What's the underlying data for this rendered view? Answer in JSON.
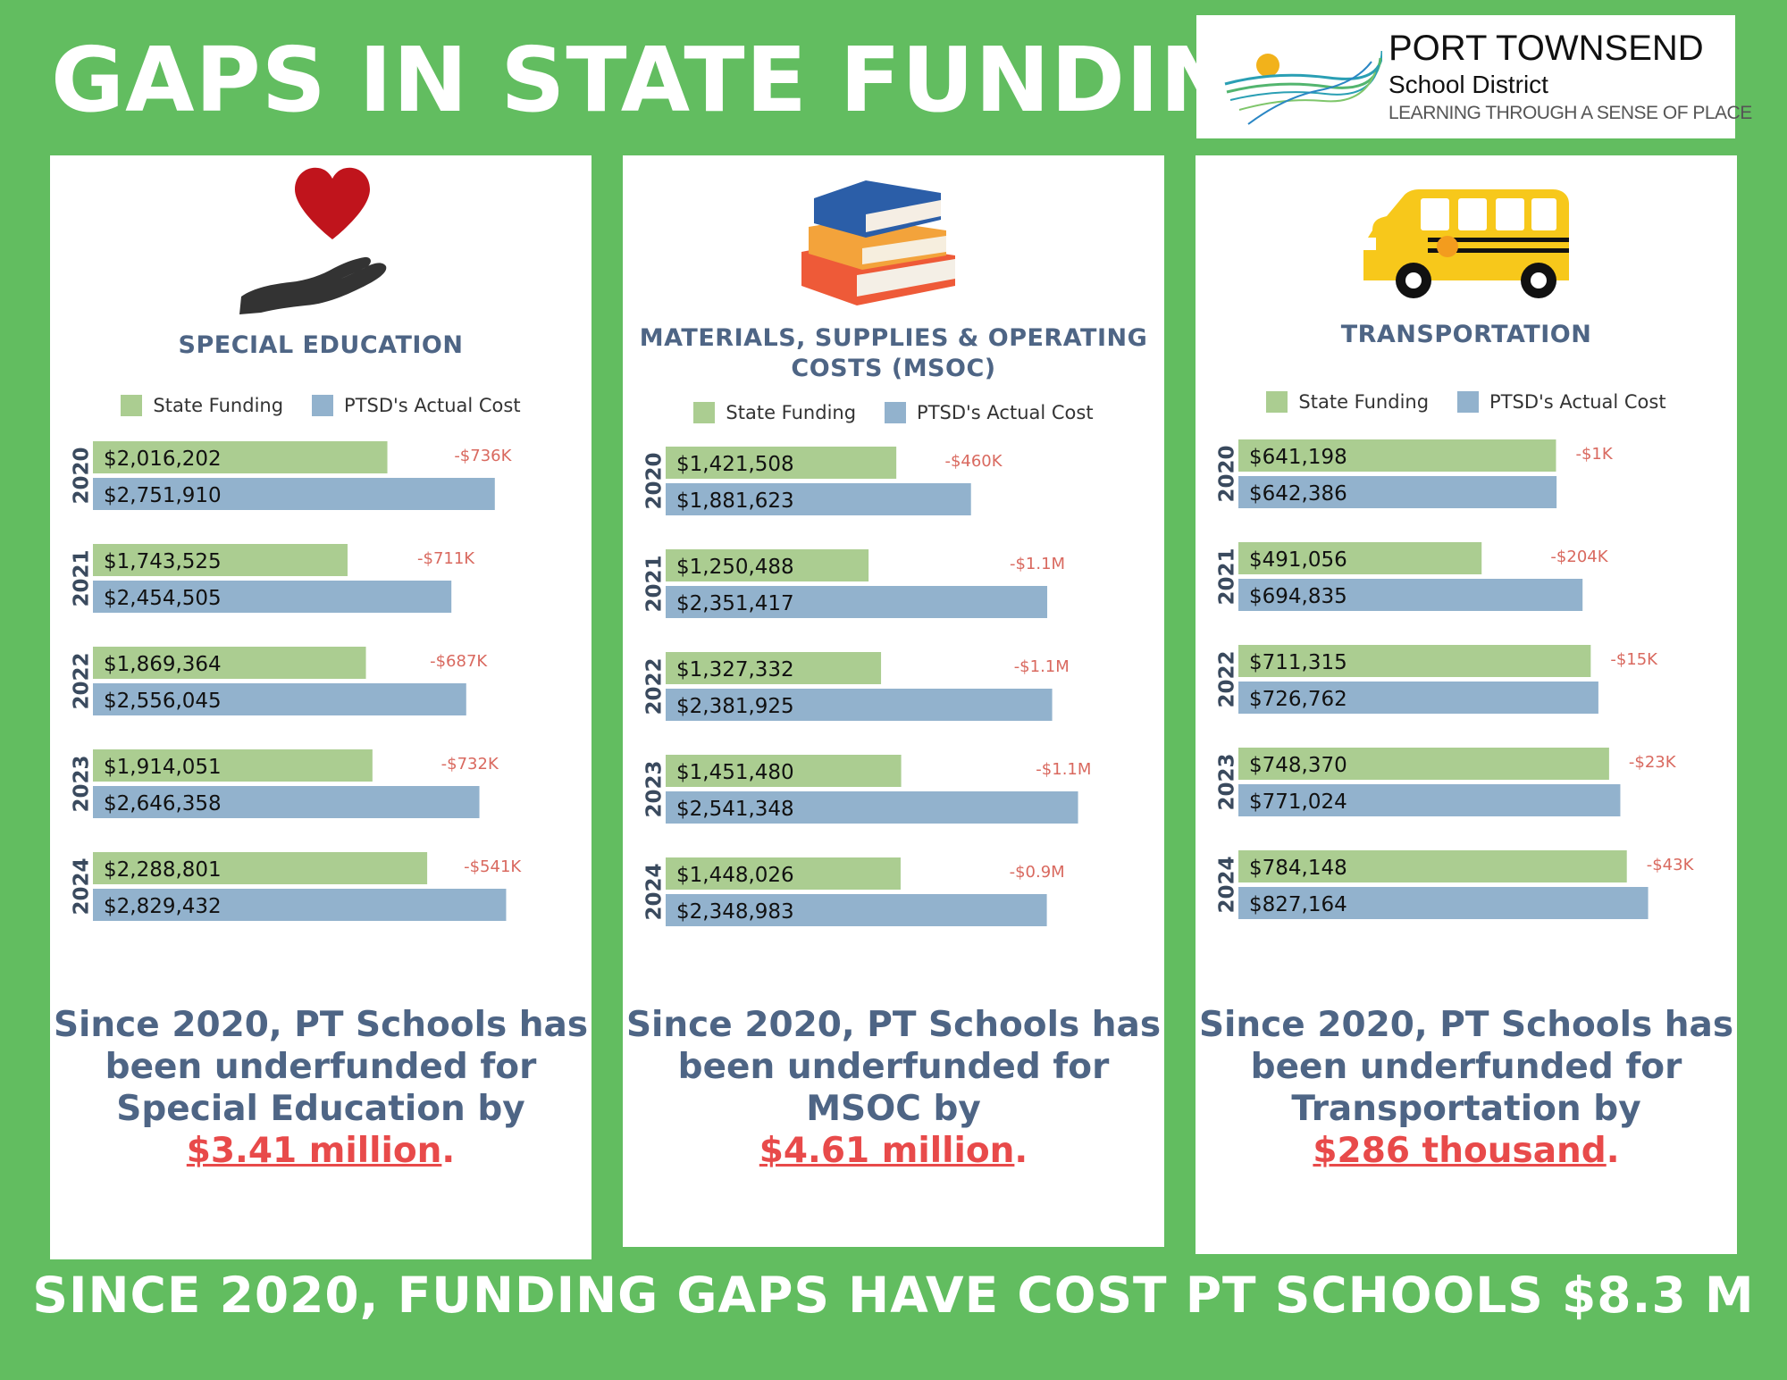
{
  "title": "GAPS IN STATE FUNDING",
  "logo": {
    "name": "PORT TOWNSEND",
    "sub": "School District",
    "tagline": "LEARNING THROUGH A SENSE OF PLACE",
    "icon": "sun-and-waves-logo"
  },
  "colors": {
    "background": "#62bd60",
    "state_funding": "#abcd91",
    "actual_cost": "#92b2cd",
    "gap": "#d9695f",
    "heading": "#4e6585",
    "highlight": "#e84a4a"
  },
  "legend": {
    "state_funding": "State Funding",
    "actual_cost": "PTSD's Actual Cost"
  },
  "panels": [
    {
      "title": "SPECIAL EDUCATION",
      "icon": "heart-in-hand-icon",
      "summary_pre": "Since 2020, PT Schools has been underfunded for Special Education by",
      "summary_amount": "$3.41 million",
      "summary_end": "."
    },
    {
      "title": "MATERIALS, SUPPLIES & OPERATING COSTS (MSOC)",
      "icon": "book-stack-icon",
      "summary_pre": "Since 2020, PT Schools has been underfunded for MSOC by",
      "summary_amount": "$4.61 million",
      "summary_end": "."
    },
    {
      "title": "TRANSPORTATION",
      "icon": "school-bus-icon",
      "summary_pre": "Since 2020, PT Schools has been underfunded for Transportation by",
      "summary_amount": "$286 thousand",
      "summary_end": "."
    }
  ],
  "chart_data": [
    {
      "type": "bar",
      "orientation": "horizontal",
      "title": "SPECIAL EDUCATION",
      "categories": [
        "2020",
        "2021",
        "2022",
        "2023",
        "2024"
      ],
      "series": [
        {
          "name": "State Funding",
          "values": [
            2016202,
            1743525,
            1869364,
            1914051,
            2288801
          ],
          "labels": [
            "$2,016,202",
            "$1,743,525",
            "$1,869,364",
            "$1,914,051",
            "$2,288,801"
          ]
        },
        {
          "name": "PTSD's Actual Cost",
          "values": [
            2751910,
            2454505,
            2556045,
            2646358,
            2829432
          ],
          "labels": [
            "$2,751,910",
            "$2,454,505",
            "$2,556,045",
            "$2,646,358",
            "$2,829,432"
          ]
        }
      ],
      "gaps": [
        "-$736K",
        "-$711K",
        "-$687K",
        "-$732K",
        "-$541K"
      ],
      "xlim": [
        0,
        2900000
      ],
      "legend": "top"
    },
    {
      "type": "bar",
      "orientation": "horizontal",
      "title": "MATERIALS, SUPPLIES & OPERATING COSTS (MSOC)",
      "categories": [
        "2020",
        "2021",
        "2022",
        "2023",
        "2024"
      ],
      "series": [
        {
          "name": "State Funding",
          "values": [
            1421508,
            1250488,
            1327332,
            1451480,
            1448026
          ],
          "labels": [
            "$1,421,508",
            "$1,250,488",
            "$1,327,332",
            "$1,451,480",
            "$1,448,026"
          ]
        },
        {
          "name": "PTSD's Actual Cost",
          "values": [
            1881623,
            2351417,
            2381925,
            2541348,
            2348983
          ],
          "labels": [
            "$1,881,623",
            "$2,351,417",
            "$2,381,925",
            "$2,541,348",
            "$2,348,983"
          ]
        }
      ],
      "gaps": [
        "-$460K",
        "-$1.1M",
        "-$1.1M",
        "-$1.1M",
        "-$0.9M"
      ],
      "xlim": [
        0,
        2610000
      ],
      "legend": "top"
    },
    {
      "type": "bar",
      "orientation": "horizontal",
      "title": "TRANSPORTATION",
      "categories": [
        "2020",
        "2021",
        "2022",
        "2023",
        "2024"
      ],
      "series": [
        {
          "name": "State Funding",
          "values": [
            641198,
            491056,
            711315,
            748370,
            784148
          ],
          "labels": [
            "$641,198",
            "$491,056",
            "$711,315",
            "$748,370",
            "$784,148"
          ]
        },
        {
          "name": "PTSD's Actual Cost",
          "values": [
            642386,
            694835,
            726762,
            771024,
            827164
          ],
          "labels": [
            "$642,386",
            "$694,835",
            "$726,762",
            "$771,024",
            "$827,164"
          ]
        }
      ],
      "gaps": [
        "-$1K",
        "-$204K",
        "-$15K",
        "-$23K",
        "-$43K"
      ],
      "xlim": [
        0,
        855000
      ],
      "legend": "top"
    }
  ],
  "footer": "SINCE 2020, FUNDING GAPS HAVE COST PT SCHOOLS $8.3 M"
}
